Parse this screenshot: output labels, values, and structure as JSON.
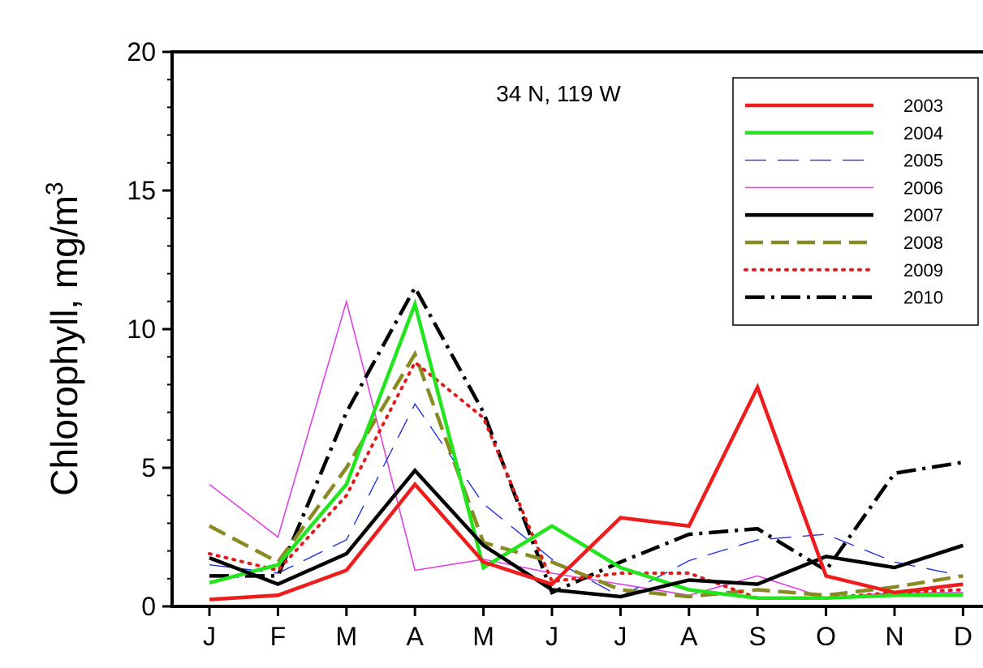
{
  "chart_data": {
    "type": "line",
    "title": "",
    "annotation": "34 N, 119 W",
    "xlabel": "",
    "ylabel": "Chlorophyll, mg/m",
    "ylabel_superscript": "3",
    "categories": [
      "J",
      "F",
      "M",
      "A",
      "M",
      "J",
      "J",
      "A",
      "S",
      "O",
      "N",
      "D"
    ],
    "ylim": [
      0,
      20
    ],
    "yticks": [
      0,
      5,
      10,
      15,
      20
    ],
    "grid": false,
    "legend_position": "top-right",
    "series": [
      {
        "name": "2003",
        "color": "#ee1c1c",
        "style": "solid-thick",
        "values": [
          0.25,
          0.4,
          1.3,
          4.4,
          1.6,
          0.8,
          3.2,
          2.9,
          7.9,
          1.1,
          0.5,
          0.8
        ]
      },
      {
        "name": "2004",
        "color": "#22e51e",
        "style": "solid-thick",
        "values": [
          0.85,
          1.5,
          4.4,
          10.9,
          1.4,
          2.9,
          1.4,
          0.6,
          0.3,
          0.3,
          0.4,
          0.4
        ]
      },
      {
        "name": "2005",
        "color": "#2233dd",
        "style": "dashed-thin",
        "values": [
          1.5,
          1.2,
          2.4,
          7.3,
          3.7,
          1.7,
          0.35,
          1.65,
          2.4,
          2.6,
          1.6,
          1.1
        ]
      },
      {
        "name": "2006",
        "color": "#e040e0",
        "style": "solid-thin",
        "values": [
          4.4,
          2.5,
          11.0,
          1.3,
          1.7,
          1.2,
          0.8,
          0.4,
          1.1,
          0.3,
          0.5,
          0.5
        ]
      },
      {
        "name": "2007",
        "color": "#000000",
        "style": "solid-thick",
        "values": [
          1.75,
          0.8,
          1.9,
          4.9,
          2.2,
          0.6,
          0.35,
          0.95,
          0.8,
          1.8,
          1.4,
          2.2
        ]
      },
      {
        "name": "2008",
        "color": "#8a8a22",
        "style": "dashed-thick",
        "values": [
          2.9,
          1.6,
          5.0,
          9.1,
          2.3,
          1.6,
          0.6,
          0.35,
          0.6,
          0.4,
          0.7,
          1.1
        ]
      },
      {
        "name": "2009",
        "color": "#e01b1b",
        "style": "dotted",
        "values": [
          1.9,
          1.3,
          4.0,
          8.8,
          6.8,
          0.9,
          1.2,
          1.2,
          0.3,
          0.3,
          0.5,
          0.6
        ]
      },
      {
        "name": "2010",
        "color": "#000000",
        "style": "dashdot",
        "values": [
          1.1,
          1.1,
          7.0,
          11.5,
          7.0,
          0.5,
          1.6,
          2.6,
          2.8,
          1.3,
          4.8,
          5.2
        ]
      }
    ]
  }
}
